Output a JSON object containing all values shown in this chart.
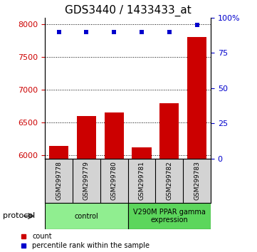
{
  "title": "GDS3440 / 1433433_at",
  "categories": [
    "GSM299778",
    "GSM299779",
    "GSM299780",
    "GSM299781",
    "GSM299782",
    "GSM299783"
  ],
  "bar_values": [
    6150,
    6600,
    6650,
    6120,
    6800,
    7800
  ],
  "bar_color": "#cc0000",
  "percentile_values": [
    90,
    90,
    90,
    90,
    90,
    95
  ],
  "percentile_color": "#0000cc",
  "ylim_left": [
    5950,
    8100
  ],
  "ylim_right": [
    0,
    100
  ],
  "yticks_left": [
    6000,
    6500,
    7000,
    7500,
    8000
  ],
  "yticks_right": [
    0,
    25,
    50,
    75,
    100
  ],
  "ytick_labels_right": [
    "0",
    "25",
    "50",
    "75",
    "100%"
  ],
  "bar_bottom": 5950,
  "groups": [
    {
      "label": "control",
      "start": 0,
      "end": 3,
      "color": "#90ee90"
    },
    {
      "label": "V290M PPAR gamma\nexpression",
      "start": 3,
      "end": 6,
      "color": "#5cd65c"
    }
  ],
  "protocol_label": "protocol",
  "background_color": "#ffffff",
  "plot_bg_color": "#ffffff",
  "bar_width": 0.7,
  "title_fontsize": 11,
  "tick_fontsize": 8
}
